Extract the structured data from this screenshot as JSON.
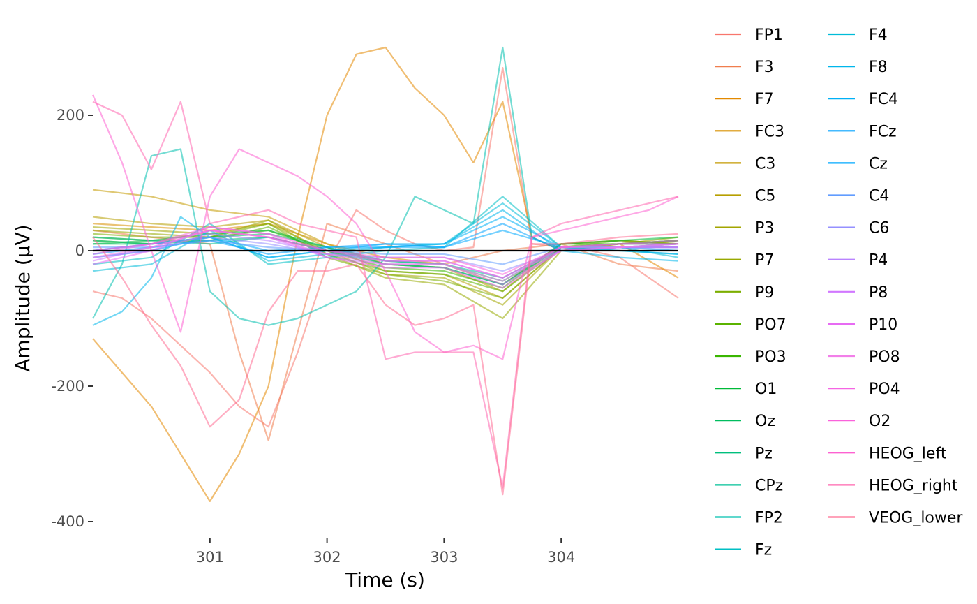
{
  "chart_data": {
    "type": "line",
    "title": "",
    "xlabel": "Time (s)",
    "ylabel": "Amplitude (μV)",
    "xlim": [
      300.0,
      305.0
    ],
    "ylim": [
      -400,
      320
    ],
    "x_ticks": [
      301,
      302,
      303,
      304
    ],
    "y_ticks": [
      -400,
      -200,
      0,
      200
    ],
    "x_tick_labels": [
      "301",
      "302",
      "303",
      "304"
    ],
    "y_tick_labels": [
      "-400",
      "-200",
      "0",
      "200"
    ],
    "grid": false,
    "zero_line": true,
    "legend_position": "right",
    "series": [
      {
        "name": "FP1",
        "color": "#F8766D",
        "x": [
          300.0,
          300.25,
          300.5,
          300.75,
          301.0,
          301.25,
          301.5,
          301.75,
          302.0,
          302.25,
          302.5,
          302.75,
          303.0,
          303.25,
          303.5,
          303.75,
          304.0,
          304.25,
          304.5,
          304.75,
          305.0
        ],
        "y": [
          -60,
          -70,
          -100,
          -140,
          -180,
          -230,
          -260,
          -150,
          -20,
          60,
          30,
          10,
          0,
          5,
          270,
          10,
          5,
          0,
          -10,
          -40,
          -70
        ]
      },
      {
        "name": "F3",
        "color": "#F07E4E",
        "x": [
          300.0,
          300.5,
          301.0,
          301.25,
          301.5,
          302.0,
          302.5,
          303.0,
          303.5,
          304.0,
          304.5,
          305.0
        ],
        "y": [
          30,
          20,
          10,
          -150,
          -280,
          40,
          10,
          -20,
          0,
          10,
          -20,
          -30
        ]
      },
      {
        "name": "F7",
        "color": "#E38900",
        "x": [
          300.0,
          300.25,
          300.5,
          300.75,
          301.0,
          301.25,
          301.5,
          301.75,
          302.0,
          302.25,
          302.5,
          302.75,
          303.0,
          303.25,
          303.5,
          303.75,
          304.0,
          304.5,
          305.0
        ],
        "y": [
          -130,
          -180,
          -230,
          -300,
          -370,
          -300,
          -200,
          20,
          200,
          290,
          300,
          240,
          200,
          130,
          220,
          20,
          0,
          10,
          -40
        ]
      },
      {
        "name": "FC3",
        "color": "#D89000",
        "x": [
          300.0,
          300.5,
          301.0,
          301.5,
          302.0,
          302.5,
          303.0,
          303.5,
          304.0,
          304.5,
          305.0
        ],
        "y": [
          40,
          35,
          30,
          40,
          10,
          -10,
          -20,
          -50,
          10,
          15,
          10
        ]
      },
      {
        "name": "C3",
        "color": "#C49A00",
        "x": [
          300.0,
          300.5,
          301.0,
          301.5,
          302.0,
          302.5,
          303.0,
          303.5,
          304.0,
          304.5,
          305.0
        ],
        "y": [
          90,
          80,
          60,
          50,
          10,
          -20,
          -25,
          -60,
          10,
          15,
          10
        ]
      },
      {
        "name": "C5",
        "color": "#B79F00",
        "x": [
          300.0,
          300.5,
          301.0,
          301.5,
          302.0,
          302.5,
          303.0,
          303.5,
          304.0,
          304.5,
          305.0
        ],
        "y": [
          50,
          40,
          35,
          45,
          5,
          -30,
          -35,
          -70,
          5,
          10,
          15
        ]
      },
      {
        "name": "P3",
        "color": "#A3A500",
        "x": [
          300.0,
          300.5,
          301.0,
          301.5,
          302.0,
          302.5,
          303.0,
          303.5,
          304.0,
          304.5,
          305.0
        ],
        "y": [
          35,
          30,
          25,
          40,
          0,
          -35,
          -40,
          -80,
          5,
          10,
          20
        ]
      },
      {
        "name": "P7",
        "color": "#98A900",
        "x": [
          300.0,
          300.5,
          301.0,
          301.5,
          302.0,
          302.5,
          303.0,
          303.5,
          304.0,
          304.5,
          305.0
        ],
        "y": [
          30,
          25,
          20,
          45,
          -5,
          -40,
          -50,
          -100,
          0,
          10,
          15
        ]
      },
      {
        "name": "P9",
        "color": "#7CAE00",
        "x": [
          300.0,
          300.5,
          301.0,
          301.5,
          302.0,
          302.5,
          303.0,
          303.5,
          304.0,
          304.5,
          305.0
        ],
        "y": [
          25,
          20,
          20,
          40,
          -10,
          -35,
          -45,
          -70,
          5,
          10,
          10
        ]
      },
      {
        "name": "PO7",
        "color": "#5BB300",
        "x": [
          300.0,
          300.5,
          301.0,
          301.5,
          302.0,
          302.5,
          303.0,
          303.5,
          304.0,
          304.5,
          305.0
        ],
        "y": [
          20,
          15,
          15,
          35,
          -5,
          -30,
          -35,
          -60,
          5,
          15,
          10
        ]
      },
      {
        "name": "PO3",
        "color": "#39B600",
        "x": [
          300.0,
          300.5,
          301.0,
          301.5,
          302.0,
          302.5,
          303.0,
          303.5,
          304.0,
          304.5,
          305.0
        ],
        "y": [
          15,
          10,
          20,
          30,
          0,
          -25,
          -30,
          -55,
          10,
          10,
          15
        ]
      },
      {
        "name": "O1",
        "color": "#00BA38",
        "x": [
          300.0,
          300.5,
          301.0,
          301.5,
          302.0,
          302.5,
          303.0,
          303.5,
          304.0,
          304.5,
          305.0
        ],
        "y": [
          10,
          15,
          25,
          30,
          5,
          -20,
          -25,
          -50,
          10,
          15,
          20
        ]
      },
      {
        "name": "Oz",
        "color": "#00BD5F",
        "x": [
          300.0,
          300.5,
          301.0,
          301.5,
          302.0,
          302.5,
          303.0,
          303.5,
          304.0,
          304.5,
          305.0
        ],
        "y": [
          10,
          10,
          20,
          25,
          5,
          -15,
          -20,
          -45,
          5,
          10,
          15
        ]
      },
      {
        "name": "Pz",
        "color": "#00BF7D",
        "x": [
          300.0,
          300.5,
          301.0,
          301.5,
          302.0,
          302.5,
          303.0,
          303.5,
          304.0,
          304.5,
          305.0
        ],
        "y": [
          15,
          10,
          15,
          20,
          0,
          -20,
          -25,
          -50,
          5,
          10,
          10
        ]
      },
      {
        "name": "CPz",
        "color": "#00C097",
        "x": [
          300.0,
          300.5,
          301.0,
          301.5,
          302.0,
          302.5,
          303.0,
          303.5,
          304.0,
          304.5,
          305.0
        ],
        "y": [
          20,
          15,
          10,
          20,
          0,
          -15,
          -20,
          -40,
          5,
          5,
          10
        ]
      },
      {
        "name": "FP2",
        "color": "#00C0AF",
        "x": [
          300.0,
          300.25,
          300.5,
          300.75,
          301.0,
          301.25,
          301.5,
          301.75,
          302.0,
          302.25,
          302.5,
          302.75,
          303.0,
          303.25,
          303.5,
          303.75,
          304.0,
          304.5,
          305.0
        ],
        "y": [
          -100,
          -20,
          140,
          150,
          -60,
          -100,
          -110,
          -100,
          -80,
          -60,
          -10,
          80,
          60,
          40,
          300,
          20,
          0,
          5,
          10
        ]
      },
      {
        "name": "Fz",
        "color": "#00BFC4",
        "x": [
          300.0,
          300.5,
          301.0,
          301.5,
          302.0,
          302.5,
          303.0,
          303.5,
          304.0,
          304.5,
          305.0
        ],
        "y": [
          -20,
          -10,
          40,
          -20,
          -10,
          0,
          5,
          80,
          5,
          0,
          -5
        ]
      },
      {
        "name": "F4",
        "color": "#00BCD8",
        "x": [
          300.0,
          300.5,
          301.0,
          301.5,
          302.0,
          302.5,
          303.0,
          303.5,
          304.0,
          304.5,
          305.0
        ],
        "y": [
          -30,
          -20,
          30,
          -15,
          -5,
          5,
          10,
          70,
          5,
          5,
          -10
        ]
      },
      {
        "name": "F8",
        "color": "#00B6EB",
        "x": [
          300.0,
          300.25,
          300.5,
          300.75,
          301.0,
          301.5,
          302.0,
          302.5,
          303.0,
          303.5,
          304.0,
          304.5,
          305.0
        ],
        "y": [
          -110,
          -90,
          -40,
          50,
          20,
          -10,
          0,
          5,
          10,
          60,
          0,
          -10,
          -15
        ]
      },
      {
        "name": "FC4",
        "color": "#00B0F6",
        "x": [
          300.0,
          300.5,
          301.0,
          301.5,
          302.0,
          302.5,
          303.0,
          303.5,
          304.0,
          304.5,
          305.0
        ],
        "y": [
          -10,
          0,
          20,
          -10,
          0,
          10,
          10,
          50,
          5,
          0,
          -5
        ]
      },
      {
        "name": "FCz",
        "color": "#06A4FF",
        "x": [
          300.0,
          300.5,
          301.0,
          301.5,
          302.0,
          302.5,
          303.0,
          303.5,
          304.0,
          304.5,
          305.0
        ],
        "y": [
          -5,
          5,
          15,
          -5,
          5,
          10,
          5,
          40,
          0,
          5,
          0
        ]
      },
      {
        "name": "Cz",
        "color": "#00A9FF",
        "x": [
          300.0,
          300.5,
          301.0,
          301.5,
          302.0,
          302.5,
          303.0,
          303.5,
          304.0,
          304.5,
          305.0
        ],
        "y": [
          0,
          10,
          20,
          0,
          5,
          5,
          5,
          30,
          5,
          5,
          5
        ]
      },
      {
        "name": "C4",
        "color": "#619CFF",
        "x": [
          300.0,
          300.5,
          301.0,
          301.5,
          302.0,
          302.5,
          303.0,
          303.5,
          304.0,
          304.5,
          305.0
        ],
        "y": [
          5,
          5,
          15,
          5,
          0,
          -5,
          -5,
          -20,
          5,
          5,
          5
        ]
      },
      {
        "name": "C6",
        "color": "#9590FF",
        "x": [
          300.0,
          300.5,
          301.0,
          301.5,
          302.0,
          302.5,
          303.0,
          303.5,
          304.0,
          304.5,
          305.0
        ],
        "y": [
          0,
          10,
          20,
          10,
          -5,
          -10,
          -10,
          -30,
          0,
          5,
          5
        ]
      },
      {
        "name": "P4",
        "color": "#B983FF",
        "x": [
          300.0,
          300.5,
          301.0,
          301.5,
          302.0,
          302.5,
          303.0,
          303.5,
          304.0,
          304.5,
          305.0
        ],
        "y": [
          -10,
          0,
          25,
          15,
          -5,
          -15,
          -15,
          -40,
          0,
          5,
          10
        ]
      },
      {
        "name": "P8",
        "color": "#D177FF",
        "x": [
          300.0,
          300.5,
          301.0,
          301.5,
          302.0,
          302.5,
          303.0,
          303.5,
          304.0,
          304.5,
          305.0
        ],
        "y": [
          -15,
          5,
          30,
          20,
          -10,
          -20,
          -20,
          -50,
          0,
          5,
          10
        ]
      },
      {
        "name": "P10",
        "color": "#E76BF3",
        "x": [
          300.0,
          300.5,
          301.0,
          301.5,
          302.0,
          302.5,
          303.0,
          303.5,
          304.0,
          304.5,
          305.0
        ],
        "y": [
          -20,
          0,
          35,
          25,
          -10,
          -25,
          -25,
          -55,
          0,
          5,
          5
        ]
      },
      {
        "name": "PO8",
        "color": "#F27FE9",
        "x": [
          300.0,
          300.5,
          301.0,
          301.5,
          302.0,
          302.5,
          303.0,
          303.5,
          304.0,
          304.5,
          305.0
        ],
        "y": [
          -10,
          5,
          30,
          20,
          -5,
          -20,
          -20,
          -45,
          5,
          5,
          10
        ]
      },
      {
        "name": "PO4",
        "color": "#F564E3",
        "x": [
          300.0,
          300.5,
          301.0,
          301.5,
          302.0,
          302.5,
          303.0,
          303.5,
          304.0,
          304.5,
          305.0
        ],
        "y": [
          -5,
          10,
          35,
          25,
          0,
          -15,
          -15,
          -40,
          5,
          10,
          10
        ]
      },
      {
        "name": "O2",
        "color": "#FA62DB",
        "x": [
          300.0,
          300.5,
          301.0,
          301.5,
          302.0,
          302.5,
          303.0,
          303.5,
          304.0,
          304.5,
          305.0
        ],
        "y": [
          0,
          10,
          30,
          20,
          0,
          -10,
          -10,
          -35,
          5,
          10,
          15
        ]
      },
      {
        "name": "HEOG_left",
        "color": "#FD61D1",
        "x": [
          300.0,
          300.25,
          300.5,
          300.75,
          301.0,
          301.25,
          301.5,
          301.75,
          302.0,
          302.25,
          302.5,
          302.75,
          303.0,
          303.25,
          303.5,
          303.75,
          304.0,
          304.25,
          304.5,
          304.75,
          305.0
        ],
        "y": [
          230,
          130,
          0,
          -120,
          80,
          150,
          130,
          110,
          80,
          40,
          -30,
          -120,
          -150,
          -140,
          -160,
          20,
          30,
          40,
          50,
          60,
          80
        ]
      },
      {
        "name": "HEOG_right",
        "color": "#FF65AE",
        "x": [
          300.0,
          300.25,
          300.5,
          300.75,
          301.0,
          301.25,
          301.5,
          301.75,
          302.0,
          302.25,
          302.5,
          302.75,
          303.0,
          303.25,
          303.5,
          303.75,
          304.0,
          304.25,
          304.5,
          304.75,
          305.0
        ],
        "y": [
          220,
          200,
          120,
          220,
          40,
          50,
          60,
          40,
          30,
          20,
          -160,
          -150,
          -150,
          -150,
          -350,
          20,
          40,
          50,
          60,
          70,
          80
        ]
      },
      {
        "name": "VEOG_lower",
        "color": "#FF6C91",
        "x": [
          300.0,
          300.25,
          300.5,
          300.75,
          301.0,
          301.25,
          301.5,
          301.75,
          302.0,
          302.25,
          302.5,
          302.75,
          303.0,
          303.25,
          303.5,
          303.75,
          304.0,
          304.5,
          305.0
        ],
        "y": [
          20,
          -40,
          -110,
          -170,
          -260,
          -220,
          -90,
          -30,
          -30,
          -20,
          -80,
          -110,
          -100,
          -80,
          -360,
          10,
          10,
          20,
          25
        ]
      }
    ]
  }
}
